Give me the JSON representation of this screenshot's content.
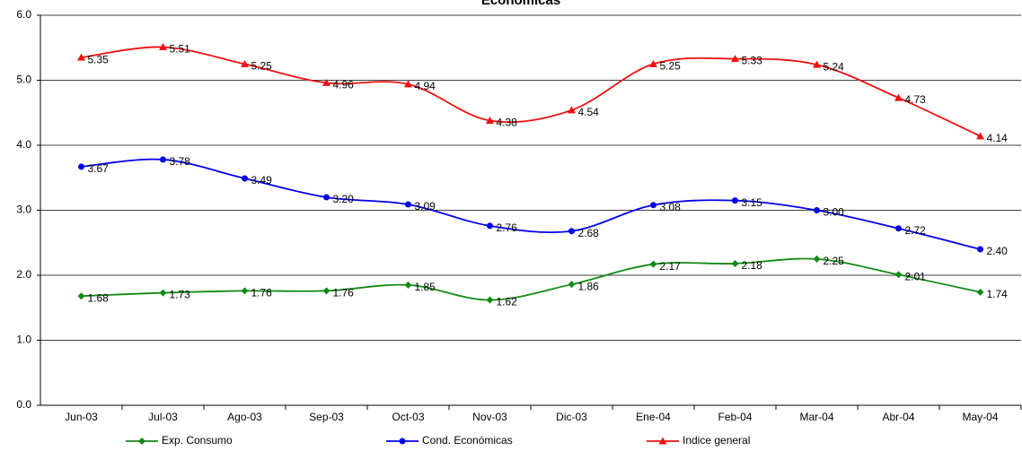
{
  "chart_data": {
    "type": "line",
    "title": "Económicas",
    "categories": [
      "Jun-03",
      "Jul-03",
      "Ago-03",
      "Sep-03",
      "Oct-03",
      "Nov-03",
      "Dic-03",
      "Ene-04",
      "Feb-04",
      "Mar-04",
      "Abr-04",
      "May-04"
    ],
    "series": [
      {
        "name": "Exp. Consumo",
        "color": "#138a13",
        "marker": "diamond",
        "values": [
          1.68,
          1.73,
          1.76,
          1.76,
          1.85,
          1.62,
          1.86,
          2.17,
          2.18,
          2.25,
          2.01,
          1.74
        ],
        "value_labels": [
          "1.68",
          "1.73",
          "1.76",
          "1.76",
          "1.85",
          "1.62",
          "1.86",
          "2.17",
          "2.18",
          "2.25",
          "2.01",
          "1.74"
        ]
      },
      {
        "name": "Cond. Económicas",
        "color": "#0000e6",
        "marker": "circle",
        "values": [
          3.67,
          3.78,
          3.49,
          3.2,
          3.09,
          2.76,
          2.68,
          3.08,
          3.15,
          3.0,
          2.72,
          2.4
        ],
        "value_labels": [
          "3.67",
          "3.78",
          "3.49",
          "3.20",
          "3.09",
          "2.76",
          "2.68",
          "3.08",
          "3.15",
          "3.00",
          "2.72",
          "2.40"
        ]
      },
      {
        "name": "Indice general",
        "color": "#ee1111",
        "marker": "triangle",
        "values": [
          5.35,
          5.51,
          5.25,
          4.96,
          4.94,
          4.38,
          4.54,
          5.25,
          5.33,
          5.24,
          4.73,
          4.14
        ],
        "value_labels": [
          "5.35",
          "5.51",
          "5.25",
          "4.96",
          "4.94",
          "4.38",
          "4.54",
          "5.25",
          "5.33",
          "5.24",
          "4.73",
          "4.14"
        ]
      }
    ],
    "ylim": [
      0,
      6
    ],
    "yticks": [
      {
        "value": 0,
        "label": "0.0"
      },
      {
        "value": 1,
        "label": "1.0"
      },
      {
        "value": 2,
        "label": "2.0"
      },
      {
        "value": 3,
        "label": "3.0"
      },
      {
        "value": 4,
        "label": "4.0"
      },
      {
        "value": 5,
        "label": "5.0"
      },
      {
        "value": 6,
        "label": "6.0"
      }
    ],
    "grid": true,
    "smooth": true,
    "legend": "bottom"
  }
}
